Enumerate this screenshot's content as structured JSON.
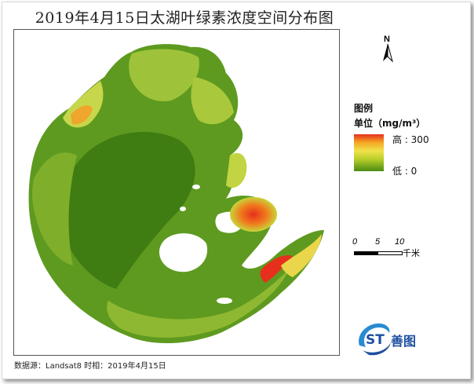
{
  "map": {
    "title": "2019年4月15日太湖叶绿素浓度空间分布图",
    "north_label": "N",
    "legend": {
      "title": "图例",
      "unit": "单位（mg/m³）",
      "high_label": "高 : 300",
      "low_label": "低 : 0",
      "colors": [
        "#e6301d",
        "#f5a623",
        "#f0e24a",
        "#b7cf2a",
        "#4b8a13"
      ]
    },
    "scale_bar": {
      "ticks": [
        "0",
        "5",
        "10"
      ],
      "unit": "千米"
    },
    "logo_text": "善图",
    "logo_mark": "ST",
    "source": "数据源：Landsat8 时相：2019年4月15日"
  }
}
